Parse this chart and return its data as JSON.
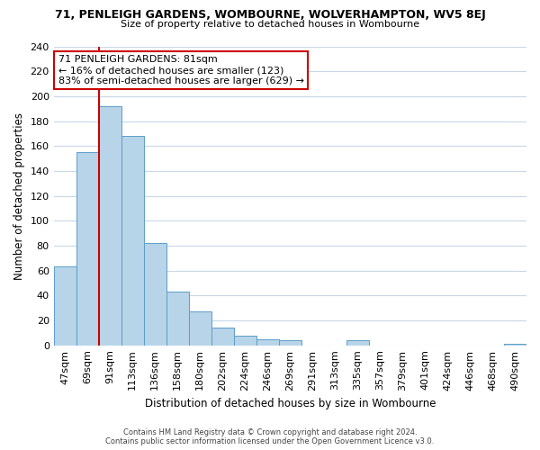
{
  "title": "71, PENLEIGH GARDENS, WOMBOURNE, WOLVERHAMPTON, WV5 8EJ",
  "subtitle": "Size of property relative to detached houses in Wombourne",
  "xlabel": "Distribution of detached houses by size in Wombourne",
  "ylabel": "Number of detached properties",
  "bar_labels": [
    "47sqm",
    "69sqm",
    "91sqm",
    "113sqm",
    "136sqm",
    "158sqm",
    "180sqm",
    "202sqm",
    "224sqm",
    "246sqm",
    "269sqm",
    "291sqm",
    "313sqm",
    "335sqm",
    "357sqm",
    "379sqm",
    "401sqm",
    "424sqm",
    "446sqm",
    "468sqm",
    "490sqm"
  ],
  "bar_heights": [
    63,
    155,
    192,
    168,
    82,
    43,
    27,
    14,
    8,
    5,
    4,
    0,
    0,
    4,
    0,
    0,
    0,
    0,
    0,
    0,
    1
  ],
  "bar_color": "#b8d4e8",
  "bar_edge_color": "#5a9ec9",
  "vline_color": "#cc0000",
  "ylim": [
    0,
    240
  ],
  "yticks": [
    0,
    20,
    40,
    60,
    80,
    100,
    120,
    140,
    160,
    180,
    200,
    220,
    240
  ],
  "annotation_text": "71 PENLEIGH GARDENS: 81sqm\n← 16% of detached houses are smaller (123)\n83% of semi-detached houses are larger (629) →",
  "annotation_box_color": "#ffffff",
  "annotation_box_edge": "#cc0000",
  "footer_line1": "Contains HM Land Registry data © Crown copyright and database right 2024.",
  "footer_line2": "Contains public sector information licensed under the Open Government Licence v3.0.",
  "background_color": "#ffffff",
  "grid_color": "#c8d8e8"
}
